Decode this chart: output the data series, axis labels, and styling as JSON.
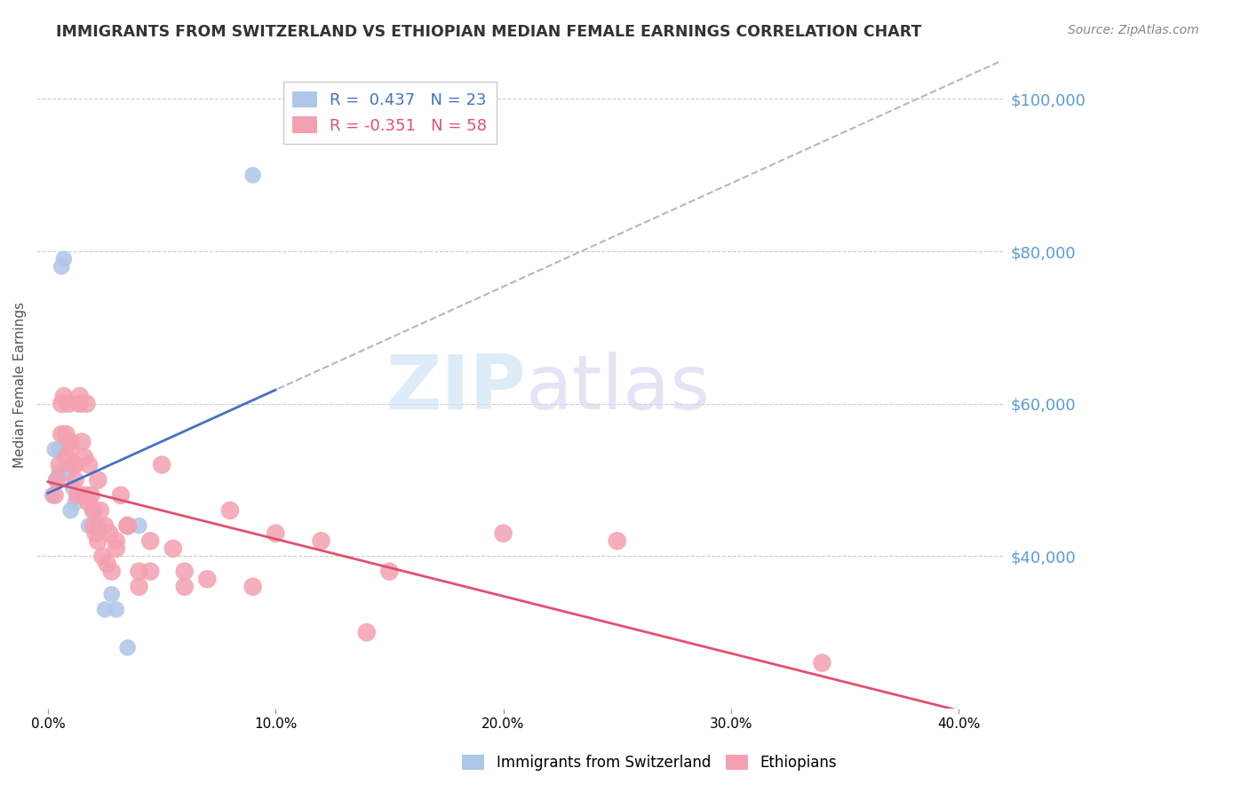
{
  "title": "IMMIGRANTS FROM SWITZERLAND VS ETHIOPIAN MEDIAN FEMALE EARNINGS CORRELATION CHART",
  "source": "Source: ZipAtlas.com",
  "ylabel": "Median Female Earnings",
  "xlabel_ticks": [
    "0.0%",
    "10.0%",
    "20.0%",
    "30.0%",
    "40.0%"
  ],
  "xlabel_vals": [
    0.0,
    10.0,
    20.0,
    30.0,
    40.0
  ],
  "ytick_labels": [
    "$40,000",
    "$60,000",
    "$80,000",
    "$100,000"
  ],
  "ytick_vals": [
    40000,
    60000,
    80000,
    100000
  ],
  "ymin": 20000,
  "ymax": 105000,
  "xmin": -0.5,
  "xmax": 42,
  "legend_r1": "R =  0.437   N = 23",
  "legend_r2": "R = -0.351   N = 58",
  "swiss_color": "#aec6e8",
  "ethiopian_color": "#f4a0b0",
  "swiss_line_color": "#4472c4",
  "ethiopian_line_color": "#e05070",
  "dashed_line_color": "#b0b8c8",
  "watermark_text": "ZIPatlas",
  "watermark_color_zip": "#c8d8f0",
  "watermark_color_atlas": "#d0c8e8",
  "swiss_x": [
    0.2,
    0.4,
    0.5,
    0.6,
    0.7,
    0.8,
    0.9,
    1.0,
    1.1,
    1.2,
    1.3,
    1.5,
    1.8,
    2.0,
    2.2,
    2.5,
    2.8,
    3.0,
    3.5,
    4.0,
    0.3,
    0.5,
    9.0
  ],
  "swiss_y": [
    48000,
    50000,
    54000,
    78000,
    79000,
    55000,
    51000,
    46000,
    49000,
    47000,
    60000,
    48000,
    44000,
    46000,
    44000,
    33000,
    35000,
    33000,
    28000,
    44000,
    54000,
    51000,
    90000
  ],
  "ethiopian_x": [
    0.3,
    0.5,
    0.6,
    0.7,
    0.8,
    0.9,
    1.0,
    1.1,
    1.2,
    1.3,
    1.4,
    1.5,
    1.6,
    1.7,
    1.8,
    1.9,
    2.0,
    2.1,
    2.2,
    2.3,
    2.5,
    2.7,
    3.0,
    3.2,
    3.5,
    4.0,
    4.5,
    5.0,
    5.5,
    6.0,
    7.0,
    8.0,
    10.0,
    12.0,
    15.0,
    20.0,
    25.0,
    34.0,
    0.4,
    0.6,
    0.8,
    1.0,
    1.2,
    1.4,
    1.6,
    1.8,
    2.0,
    2.2,
    2.4,
    2.6,
    2.8,
    3.0,
    3.5,
    4.0,
    4.5,
    6.0,
    9.0,
    14.0
  ],
  "ethiopian_y": [
    48000,
    52000,
    60000,
    61000,
    53000,
    60000,
    55000,
    52000,
    50000,
    48000,
    61000,
    55000,
    53000,
    60000,
    52000,
    48000,
    46000,
    43000,
    50000,
    46000,
    44000,
    43000,
    42000,
    48000,
    44000,
    36000,
    42000,
    52000,
    41000,
    38000,
    37000,
    46000,
    43000,
    42000,
    38000,
    43000,
    42000,
    26000,
    50000,
    56000,
    56000,
    54000,
    52000,
    60000,
    48000,
    47000,
    44000,
    42000,
    40000,
    39000,
    38000,
    41000,
    44000,
    38000,
    38000,
    36000,
    36000,
    30000
  ]
}
